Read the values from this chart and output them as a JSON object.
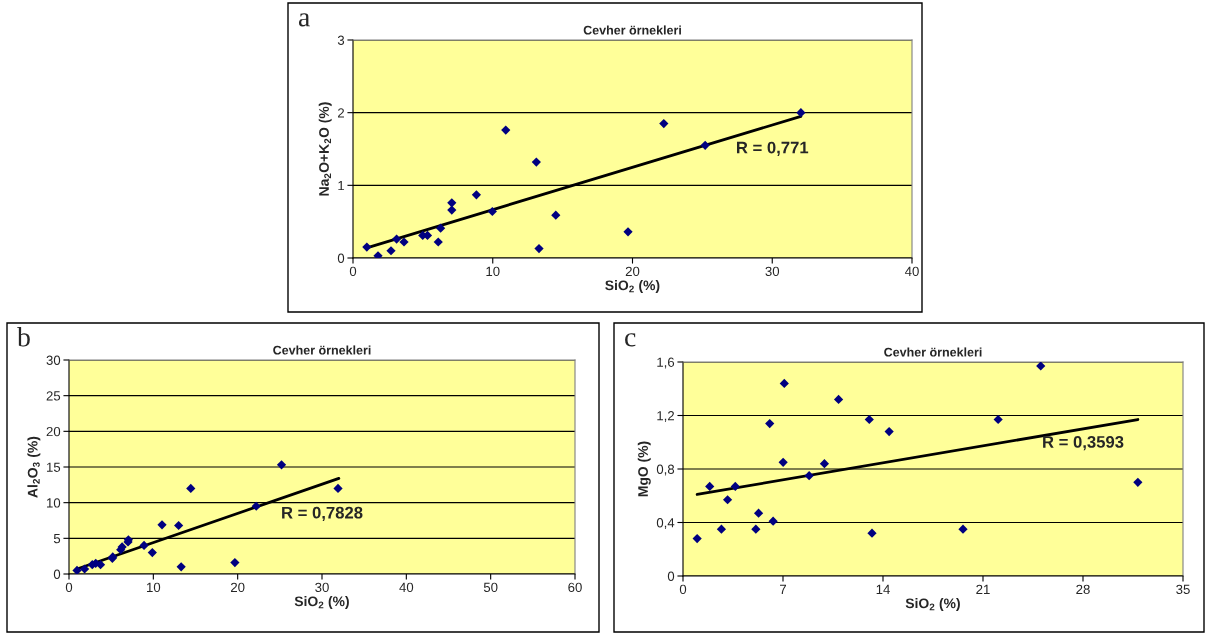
{
  "chart_data": [
    {
      "type": "scatter",
      "title": "Cevher örnekleri",
      "xlabel": "SiO$_{2}$ (%)",
      "ylabel": "Na$_{2}$O+K$_{2}$O (%)",
      "xlim": [
        0,
        40
      ],
      "xticks": [
        0,
        10,
        20,
        30,
        40
      ],
      "ylim": [
        0,
        3
      ],
      "yticks": [
        0,
        1,
        2,
        3
      ],
      "grid": "y",
      "annotations": [
        "a",
        "R = 0,771"
      ],
      "series": [
        {
          "color": "#000080",
          "marker": "diamond",
          "x": [
            0.99,
            1.79,
            2.72,
            3.12,
            3.65,
            4.99,
            5.33,
            6.1,
            6.27,
            7.07,
            7.07,
            8.83,
            9.97,
            10.93,
            13.12,
            13.31,
            14.51,
            19.68,
            22.24,
            25.2,
            32.05
          ],
          "values": [
            0.15,
            0.03,
            0.1,
            0.26,
            0.22,
            0.31,
            0.31,
            0.22,
            0.41,
            0.66,
            0.76,
            0.87,
            0.64,
            1.76,
            1.32,
            0.13,
            0.59,
            0.36,
            1.85,
            1.55,
            2.0
          ]
        },
        {
          "type": "line",
          "color": "#000000",
          "x": [
            0.99,
            32.05
          ],
          "values": [
            0.14,
            1.95
          ]
        }
      ]
    },
    {
      "type": "scatter",
      "title": "Cevher örnekleri",
      "xlabel": "SiO$_{2}$ (%)",
      "ylabel": "Al$_{2}$O$_{3}$ (%)",
      "xlim": [
        0,
        60
      ],
      "xticks": [
        0,
        10,
        20,
        30,
        40,
        50,
        60
      ],
      "ylim": [
        0,
        30
      ],
      "yticks": [
        0,
        5,
        10,
        15,
        20,
        25,
        30
      ],
      "grid": "y",
      "annotations": [
        "b",
        "R = 0,7828"
      ],
      "series": [
        {
          "color": "#000080",
          "marker": "diamond",
          "x": [
            0.95,
            1.85,
            2.76,
            3.17,
            3.74,
            5.14,
            5.19,
            6.13,
            6.3,
            7.0,
            7.04,
            8.9,
            9.88,
            11.03,
            13.0,
            13.3,
            14.44,
            19.67,
            22.2,
            25.2,
            31.9
          ],
          "values": [
            0.5,
            0.7,
            1.3,
            1.5,
            1.3,
            2.2,
            2.4,
            3.4,
            3.8,
            4.5,
            4.8,
            4.0,
            3.0,
            6.9,
            6.8,
            1.0,
            12.0,
            1.6,
            9.5,
            15.3,
            12.0
          ]
        },
        {
          "type": "line",
          "color": "#000000",
          "x": [
            0.95,
            32.0
          ],
          "values": [
            0.7,
            13.4
          ]
        }
      ]
    },
    {
      "type": "scatter",
      "title": "Cevher örnekleri",
      "xlabel": "SiO$_{2}$ (%)",
      "ylabel": "MgO (%)",
      "xlim": [
        0,
        35
      ],
      "xticks": [
        0,
        7,
        14,
        21,
        28,
        35
      ],
      "ylim": [
        0,
        1.6
      ],
      "yticks": [
        0,
        {
          "value": 0.4,
          "label": "0,4"
        },
        {
          "value": 0.8,
          "label": "0,8"
        },
        {
          "value": 1.2,
          "label": "1,2"
        },
        {
          "value": 1.6,
          "label": "1,6"
        }
      ],
      "grid": "y",
      "annotations": [
        "c",
        "R = 0,3593"
      ],
      "series": [
        {
          "color": "#000080",
          "marker": "diamond",
          "x": [
            0.99,
            1.87,
            2.69,
            3.12,
            3.66,
            5.1,
            5.29,
            6.07,
            6.31,
            7.01,
            7.09,
            8.83,
            9.9,
            10.89,
            13.04,
            13.23,
            14.43,
            19.6,
            22.06,
            25.04,
            31.84
          ],
          "values": [
            0.28,
            0.67,
            0.35,
            0.57,
            0.67,
            0.35,
            0.47,
            1.14,
            0.41,
            0.85,
            1.44,
            0.75,
            0.84,
            1.32,
            1.17,
            0.32,
            1.08,
            0.35,
            1.17,
            1.57,
            0.7
          ]
        },
        {
          "type": "line",
          "color": "#000000",
          "x": [
            0.99,
            31.84
          ],
          "values": [
            0.61,
            1.17
          ]
        }
      ]
    }
  ]
}
